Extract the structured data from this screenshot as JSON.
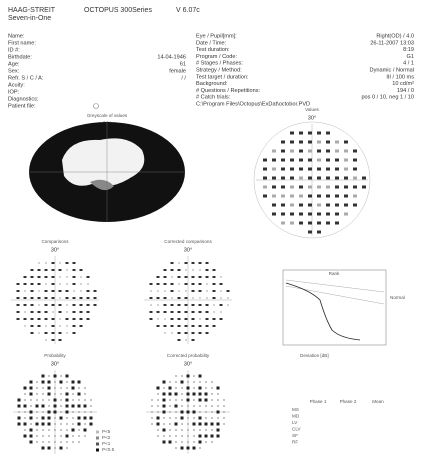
{
  "header": {
    "brand": "HAAG-STREIT",
    "subtitle": "Seven-in-One",
    "product": "OCTOPUS 300Series",
    "version": "V 6.07c"
  },
  "patient": [
    {
      "label": "Name:"
    },
    {
      "label": "First name:"
    },
    {
      "label": "ID #:"
    },
    {
      "label": "Birthdate:",
      "value": "14-04-1946"
    },
    {
      "label": "Age:",
      "value": "61"
    },
    {
      "label": "Sex:",
      "value": "female"
    },
    {
      "label": "Refr. S / C / A:",
      "value": "/ /"
    },
    {
      "label": "Acuity:"
    },
    {
      "label": "IOP:"
    },
    {
      "label": "Diagnostics:"
    },
    {
      "label": "Patient file:"
    }
  ],
  "exam": [
    {
      "label": "Eye / Pupil[mm]:",
      "value": "Right(OD) / 4.0"
    },
    {
      "label": "Date / Time:",
      "value": "26-11-2007 13:03"
    },
    {
      "label": "Test duration:",
      "value": "8:19"
    },
    {
      "label": "Program / Code:",
      "value": "G1"
    },
    {
      "label": "# Stages / Phases:",
      "value": "4 / 1"
    },
    {
      "label": "Strategy / Method:",
      "value": "Dynamic / Normal"
    },
    {
      "label": "Test target / duration:",
      "value": "III / 100 ms"
    },
    {
      "label": "Background:",
      "value": "10 cd/m²"
    },
    {
      "label": "# Questions / Repetitions:",
      "value": "194 / 0"
    },
    {
      "label": "# Catch trials:",
      "value": "pos 0 / 10, neg 1 / 10"
    },
    {
      "label": "C:\\Program Files\\Octopus\\ExDat\\octobor.PVD"
    }
  ],
  "plots": {
    "greyscale": {
      "title": "Greyscale of values",
      "angle": "30°"
    },
    "values": {
      "title": "Values",
      "angle": "30°"
    },
    "comparisons": {
      "title": "Comparisons",
      "angle": "30°"
    },
    "corrected_comparisons": {
      "title": "Corrected comparisons",
      "angle": "30°"
    },
    "probability": {
      "title": "Probability",
      "angle": "30°"
    },
    "corrected_probability": {
      "title": "Corrected probability",
      "angle": "30°"
    }
  },
  "curve": {
    "legend": "Rank",
    "normal": "Normal",
    "label": "Deviation [dB]"
  },
  "legend": [
    "P<5",
    "P<2",
    "P<1",
    "P<0.5"
  ],
  "indices": {
    "columns": [
      "Phase 1",
      "Phase 2",
      "Mean"
    ],
    "rows": [
      "MS",
      "MD",
      "LV",
      "CLV",
      "SF",
      "RF"
    ]
  }
}
